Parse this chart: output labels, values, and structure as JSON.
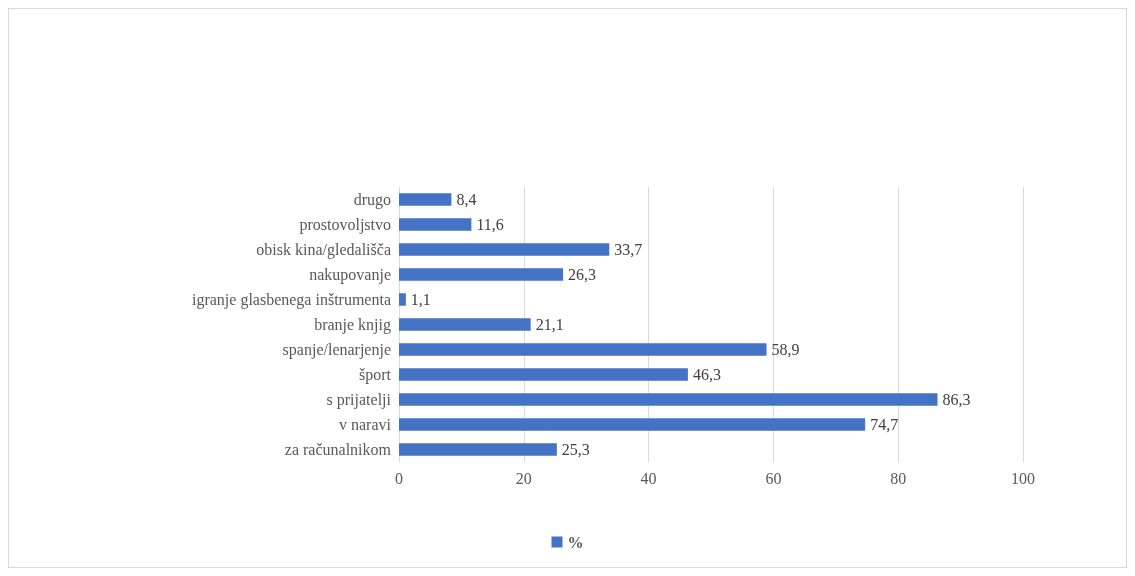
{
  "chart_data": {
    "type": "bar",
    "orientation": "horizontal",
    "categories": [
      "drugo",
      "prostovoljstvo",
      "obisk kina/gledališča",
      "nakupovanje",
      "igranje glasbenega inštrumenta",
      "branje knjig",
      "spanje/lenarjenje",
      "šport",
      "s prijatelji",
      "v naravi",
      "za računalnikom"
    ],
    "series": [
      {
        "name": "%",
        "color": "#4472c4",
        "values": [
          8.4,
          11.6,
          33.7,
          26.3,
          1.1,
          21.1,
          58.9,
          46.3,
          86.3,
          74.7,
          25.3
        ],
        "value_labels": [
          "8,4",
          "11,6",
          "33,7",
          "26,3",
          "1,1",
          "21,1",
          "58,9",
          "46,3",
          "86,3",
          "74,7",
          "25,3"
        ]
      }
    ],
    "xlim": [
      0,
      100
    ],
    "xticks": [
      0,
      20,
      40,
      60,
      80,
      100
    ],
    "grid": "x",
    "legend": "bottom"
  }
}
